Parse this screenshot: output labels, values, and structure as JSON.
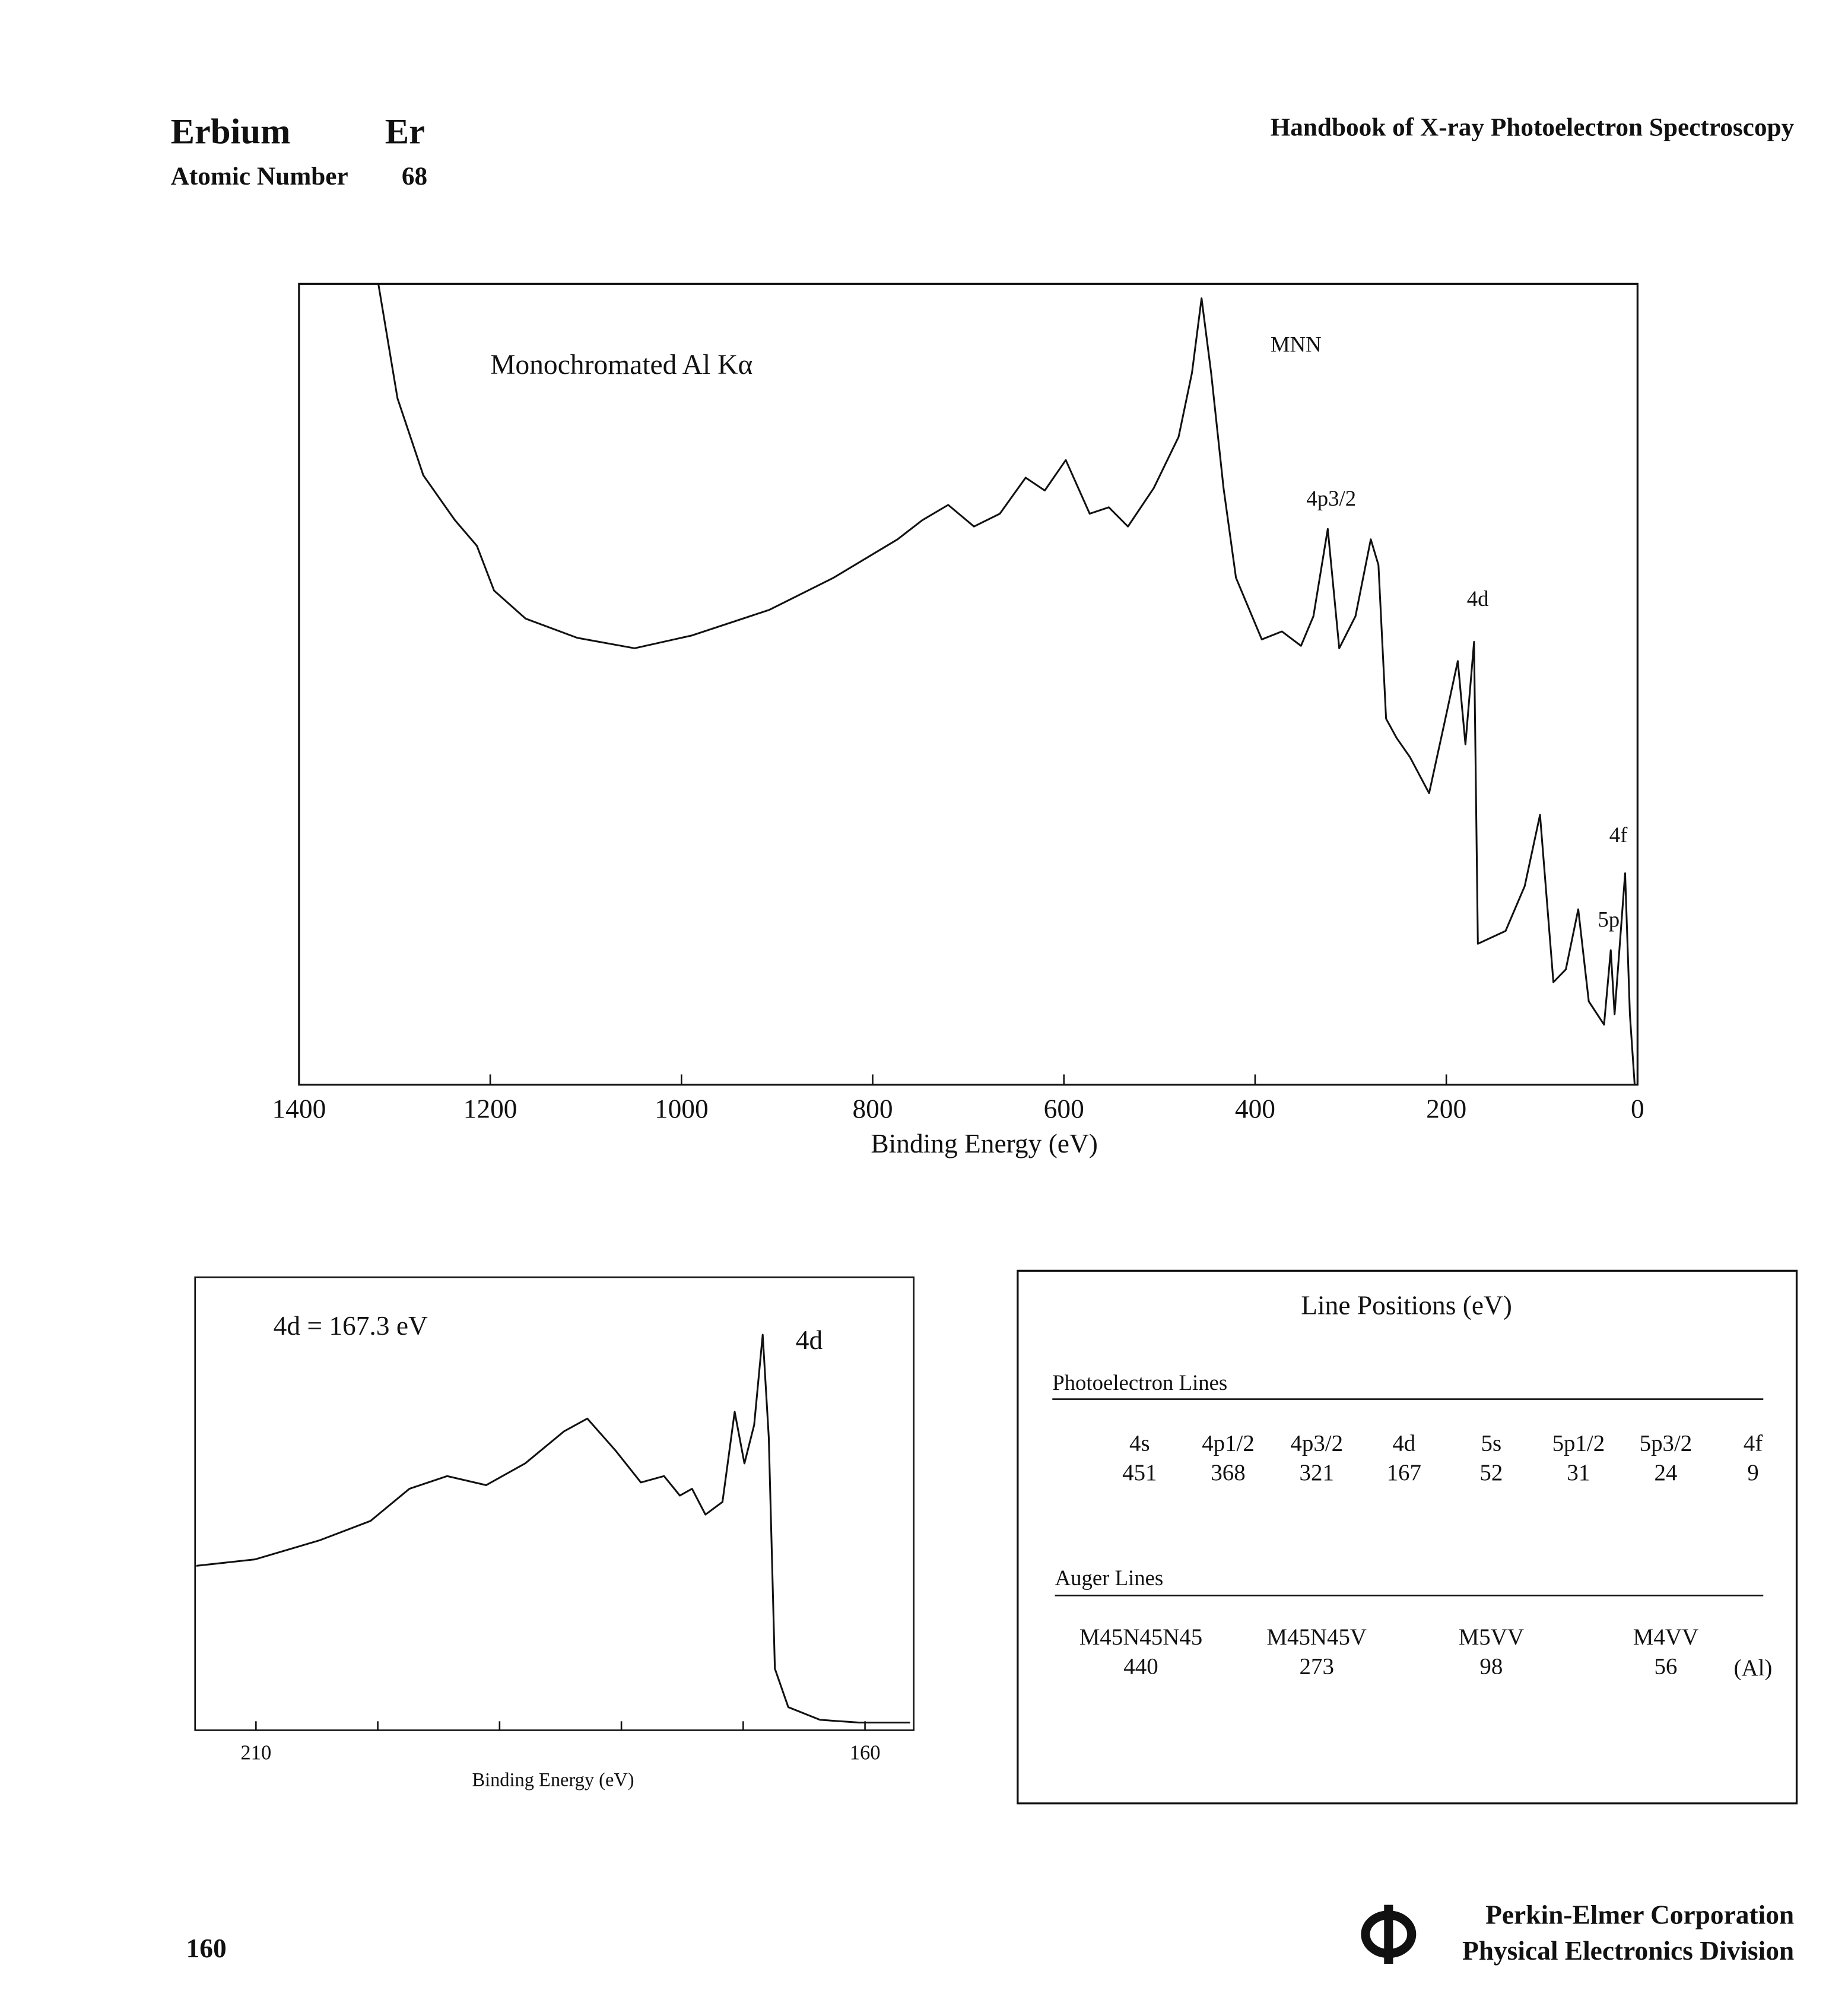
{
  "header": {
    "element": "Erbium",
    "symbol": "Er",
    "atomic_number_label": "Atomic Number",
    "atomic_number": "68",
    "book": "Handbook of X-ray Photoelectron Spectroscopy"
  },
  "chart_data": [
    {
      "type": "line",
      "annotations": [
        "Monochromated Al Kα",
        "MNN",
        "4p3/2",
        "4d",
        "4f",
        "5p"
      ],
      "x_label": "Binding Energy (eV)",
      "xlim": [
        1400,
        0
      ],
      "xticks": [
        1400,
        1200,
        1000,
        800,
        600,
        400,
        200,
        0
      ],
      "ylim": [
        0,
        100
      ],
      "color": "#111111",
      "x": [
        1317,
        1297,
        1270,
        1237,
        1214,
        1196,
        1163,
        1109,
        1049,
        989,
        908,
        841,
        774,
        748,
        721,
        694,
        667,
        640,
        620,
        598,
        573,
        553,
        533,
        506,
        480,
        466,
        456,
        446,
        433,
        420,
        393,
        372,
        352,
        339,
        324,
        312,
        295,
        279,
        271,
        263,
        252,
        238,
        218,
        201,
        188,
        180,
        171,
        167,
        138,
        118,
        102,
        88,
        75,
        62,
        51,
        35,
        28,
        24,
        13,
        8,
        3
      ],
      "values": [
        100,
        85.7,
        76.1,
        70.5,
        67.3,
        61.7,
        58.2,
        55.8,
        54.5,
        56.1,
        59.3,
        63.3,
        68.1,
        70.5,
        72.4,
        69.7,
        71.3,
        75.8,
        74.2,
        78.0,
        71.3,
        72.1,
        69.7,
        74.5,
        80.9,
        88.9,
        98.2,
        88.9,
        74.5,
        63.3,
        55.6,
        56.6,
        54.8,
        58.5,
        69.4,
        54.5,
        58.5,
        68.1,
        64.9,
        45.7,
        43.3,
        40.9,
        36.4,
        45.7,
        52.9,
        42.5,
        55.3,
        17.6,
        19.2,
        24.8,
        33.7,
        12.8,
        14.4,
        21.9,
        10.4,
        7.5,
        16.8,
        8.8,
        26.4,
        8.8,
        0
      ]
    },
    {
      "type": "line",
      "annotations": [
        "4d = 167.3 eV",
        "4d"
      ],
      "x_label": "Binding Energy (eV)",
      "xlim": [
        215,
        156
      ],
      "xticks": [
        210,
        160
      ],
      "minor_xticks": [
        200,
        190,
        180,
        170
      ],
      "ylim": [
        0,
        100
      ],
      "color": "#111111",
      "x": [
        214.9,
        210.1,
        204.8,
        200.6,
        197.4,
        194.3,
        191.1,
        187.9,
        184.7,
        182.8,
        180.5,
        178.4,
        176.5,
        175.2,
        174.2,
        173.1,
        171.7,
        170.7,
        169.9,
        169.1,
        168.4,
        167.9,
        167.4,
        166.3,
        163.7,
        160.5,
        156.3
      ],
      "values": [
        36.3,
        37.7,
        41.9,
        46.2,
        53.3,
        56.1,
        54.1,
        58.9,
        66.0,
        68.8,
        61.8,
        54.7,
        56.1,
        51.8,
        53.3,
        47.6,
        50.4,
        70.3,
        58.9,
        67.4,
        87.3,
        64.6,
        13.6,
        5.1,
        2.3,
        1.7,
        1.7
      ]
    }
  ],
  "table": {
    "title": "Line Positions (eV)",
    "photoelectron": {
      "heading": "Photoelectron Lines",
      "lines": [
        {
          "name": "4s",
          "value": 451
        },
        {
          "name": "4p1/2",
          "value": 368
        },
        {
          "name": "4p3/2",
          "value": 321
        },
        {
          "name": "4d",
          "value": 167
        },
        {
          "name": "5s",
          "value": 52
        },
        {
          "name": "5p1/2",
          "value": 31
        },
        {
          "name": "5p3/2",
          "value": 24
        },
        {
          "name": "4f",
          "value": 9
        }
      ]
    },
    "auger": {
      "heading": "Auger Lines",
      "lines": [
        {
          "name": "M45N45N45",
          "value": 440
        },
        {
          "name": "M45N45V",
          "value": 273
        },
        {
          "name": "M5VV",
          "value": 98
        },
        {
          "name": "M4VV",
          "value": 56
        }
      ],
      "note": "(Al)"
    }
  },
  "footer": {
    "page": "160",
    "company": "Perkin-Elmer Corporation",
    "division": "Physical Electronics Division"
  }
}
